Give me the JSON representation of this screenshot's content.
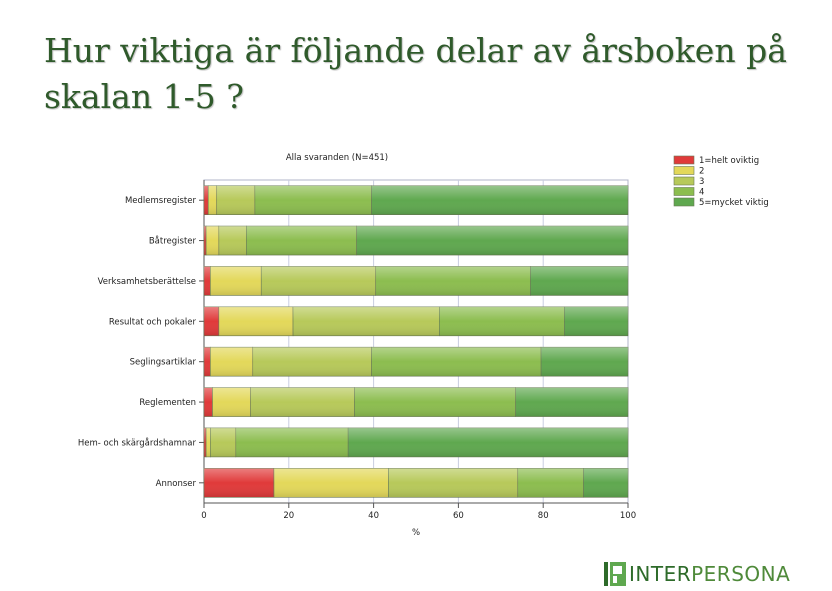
{
  "slide": {
    "title": "Hur viktiga är följande delar av årsboken på skalan 1-5 ?"
  },
  "logo": {
    "text_strong": "INTER",
    "text_light": "PERSONA"
  },
  "chart_data": {
    "type": "bar",
    "orientation": "horizontal",
    "stacked": true,
    "title": "Alla svaranden (N=451)",
    "xlabel": "%",
    "ylabel": "",
    "xlim": [
      0,
      100
    ],
    "xticks": [
      0,
      20,
      40,
      60,
      80,
      100
    ],
    "grid": true,
    "legend_position": "top-right",
    "categories": [
      "Medlemsregister",
      "Båtregister",
      "Verksamhetsberättelse",
      "Resultat och pokaler",
      "Seglingsartiklar",
      "Reglementen",
      "Hem- och skärgårdshamnar",
      "Annonser"
    ],
    "series": [
      {
        "name": "1=helt oviktig",
        "color": "#e03a3a",
        "values": [
          1.0,
          0.5,
          1.5,
          3.5,
          1.5,
          2.0,
          0.5,
          16.5
        ]
      },
      {
        "name": "2",
        "color": "#e3d85a",
        "values": [
          2.0,
          3.0,
          12.0,
          17.5,
          10.0,
          9.0,
          1.0,
          27.0
        ]
      },
      {
        "name": "3",
        "color": "#b7c95a",
        "values": [
          9.0,
          6.5,
          27.0,
          34.5,
          28.0,
          24.5,
          6.0,
          30.5
        ]
      },
      {
        "name": "4",
        "color": "#8cbd4f",
        "values": [
          27.5,
          26.0,
          36.5,
          29.5,
          40.0,
          38.0,
          26.5,
          15.5
        ]
      },
      {
        "name": "5=mycket viktig",
        "color": "#5fa84f",
        "values": [
          60.5,
          64.0,
          23.0,
          15.0,
          20.5,
          26.5,
          66.0,
          10.5
        ]
      }
    ]
  }
}
